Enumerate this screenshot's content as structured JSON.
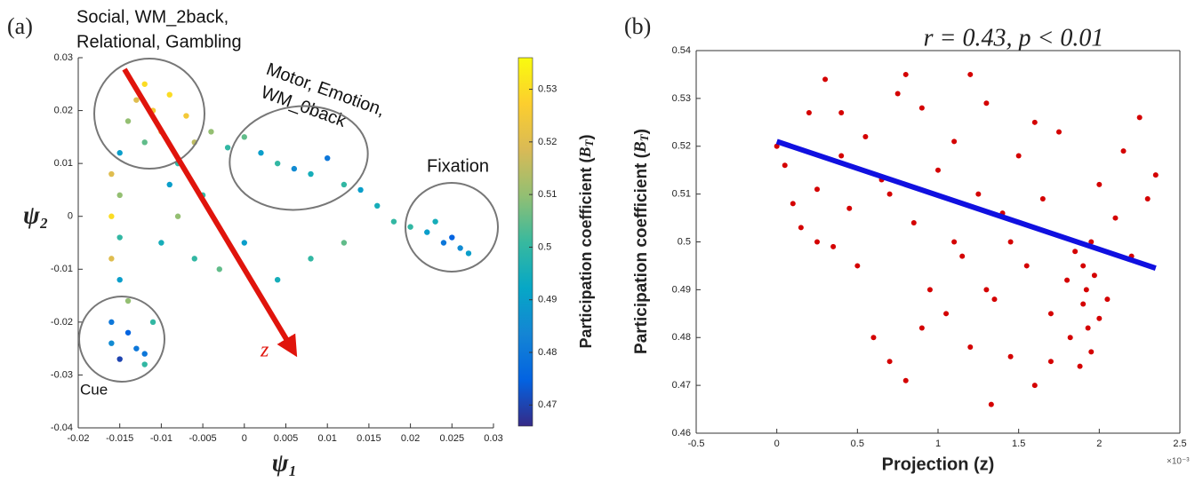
{
  "chart_data": [
    {
      "type": "scatter",
      "panel_label": "(a)",
      "xlabel": "ψ₁",
      "ylabel": "ψ₂",
      "colormap": "parula",
      "xlim": [
        -0.02,
        0.03
      ],
      "ylim": [
        -0.04,
        0.03
      ],
      "xticks": [
        -0.02,
        -0.015,
        -0.01,
        -0.005,
        0,
        0.005,
        0.01,
        0.015,
        0.02,
        0.025,
        0.03
      ],
      "yticks": [
        -0.04,
        -0.03,
        -0.02,
        -0.01,
        0,
        0.01,
        0.02,
        0.03
      ],
      "colorbar": {
        "label": [
          "Participation coefficient (",
          "B",
          "T",
          ")"
        ],
        "clim": [
          0.466,
          0.536
        ],
        "ticks": [
          0.47,
          0.48,
          0.49,
          0.5,
          0.51,
          0.52,
          0.53
        ]
      },
      "annotations": [
        [
          "Social, WM_2back,",
          "Relational, Gambling"
        ],
        [
          "Motor, Emotion,",
          "WM_0back"
        ],
        [
          "Fixation"
        ],
        [
          "Cue"
        ],
        [
          "z"
        ]
      ],
      "x": [
        -0.012,
        -0.013,
        -0.011,
        -0.009,
        -0.014,
        -0.01,
        -0.007,
        -0.012,
        -0.015,
        -0.016,
        -0.015,
        -0.016,
        -0.015,
        -0.016,
        -0.015,
        -0.014,
        -0.016,
        -0.014,
        -0.013,
        -0.015,
        -0.012,
        -0.016,
        -0.011,
        -0.012,
        -0.008,
        -0.006,
        -0.004,
        -0.002,
        0.0,
        0.002,
        0.004,
        0.006,
        0.008,
        0.01,
        0.012,
        0.014,
        0.016,
        -0.005,
        -0.008,
        -0.01,
        -0.006,
        -0.003,
        0.0,
        0.004,
        0.008,
        0.012,
        -0.009,
        0.02,
        0.022,
        0.024,
        0.026,
        0.027,
        0.023,
        0.025,
        0.018
      ],
      "values": [
        0.025,
        0.022,
        0.02,
        0.023,
        0.018,
        0.016,
        0.019,
        0.014,
        0.012,
        0.008,
        0.004,
        0.0,
        -0.004,
        -0.008,
        -0.012,
        -0.016,
        -0.02,
        -0.022,
        -0.025,
        -0.027,
        -0.028,
        -0.024,
        -0.02,
        -0.026,
        0.01,
        0.014,
        0.016,
        0.013,
        0.015,
        0.012,
        0.01,
        0.009,
        0.008,
        0.011,
        0.006,
        0.005,
        0.002,
        0.004,
        0.0,
        -0.005,
        -0.008,
        -0.01,
        -0.005,
        -0.012,
        -0.008,
        -0.005,
        0.006,
        -0.002,
        -0.003,
        -0.005,
        -0.006,
        -0.007,
        -0.001,
        -0.004,
        -0.001
      ],
      "color_values": [
        0.53,
        0.52,
        0.525,
        0.53,
        0.51,
        0.52,
        0.525,
        0.505,
        0.49,
        0.52,
        0.51,
        0.53,
        0.5,
        0.52,
        0.49,
        0.51,
        0.48,
        0.475,
        0.48,
        0.47,
        0.5,
        0.485,
        0.5,
        0.48,
        0.5,
        0.515,
        0.51,
        0.5,
        0.505,
        0.49,
        0.5,
        0.485,
        0.495,
        0.48,
        0.5,
        0.49,
        0.495,
        0.5,
        0.51,
        0.495,
        0.5,
        0.505,
        0.49,
        0.495,
        0.5,
        0.505,
        0.49,
        0.5,
        0.49,
        0.48,
        0.485,
        0.49,
        0.495,
        0.475,
        0.5
      ]
    },
    {
      "type": "scatter",
      "panel_label": "(b)",
      "title": "r = 0.43, p < 0.01",
      "xlabel": "Projection (z)",
      "x_multiplier": "×10⁻³",
      "ylabel": [
        "Participation coefficient (",
        "B",
        "T",
        ")"
      ],
      "color": "#d40000",
      "box": true,
      "xlim": [
        -0.5,
        2.5
      ],
      "ylim": [
        0.46,
        0.54
      ],
      "xticks": [
        -0.5,
        0,
        0.5,
        1,
        1.5,
        2,
        2.5
      ],
      "yticks": [
        0.46,
        0.47,
        0.48,
        0.49,
        0.5,
        0.51,
        0.52,
        0.53,
        0.54
      ],
      "fit_line": {
        "color": "#1010e0",
        "x": [
          0,
          2.35
        ],
        "y": [
          0.521,
          0.4945
        ]
      },
      "x": [
        0.0,
        0.05,
        0.1,
        0.15,
        0.2,
        0.25,
        0.3,
        0.35,
        0.4,
        0.45,
        0.5,
        0.55,
        0.6,
        0.65,
        0.7,
        0.75,
        0.8,
        0.85,
        0.9,
        0.95,
        1.0,
        1.05,
        1.1,
        1.15,
        1.2,
        1.25,
        1.3,
        1.33,
        1.35,
        1.4,
        1.45,
        1.5,
        1.55,
        1.6,
        1.65,
        1.7,
        1.75,
        1.8,
        1.82,
        1.85,
        1.88,
        1.9,
        1.9,
        1.92,
        1.93,
        1.95,
        1.95,
        1.97,
        2.0,
        2.0,
        2.05,
        2.1,
        2.15,
        2.2,
        2.25,
        2.3,
        2.35,
        1.1,
        0.7,
        1.3,
        0.4,
        0.9,
        1.6,
        1.7,
        1.2,
        0.8,
        0.25,
        1.45
      ],
      "values": [
        0.52,
        0.516,
        0.508,
        0.503,
        0.527,
        0.511,
        0.534,
        0.499,
        0.518,
        0.507,
        0.495,
        0.522,
        0.48,
        0.513,
        0.475,
        0.531,
        0.471,
        0.504,
        0.528,
        0.49,
        0.515,
        0.485,
        0.521,
        0.497,
        0.478,
        0.51,
        0.529,
        0.466,
        0.488,
        0.506,
        0.476,
        0.518,
        0.495,
        0.47,
        0.509,
        0.485,
        0.523,
        0.492,
        0.48,
        0.498,
        0.474,
        0.487,
        0.495,
        0.49,
        0.482,
        0.477,
        0.5,
        0.493,
        0.484,
        0.512,
        0.488,
        0.505,
        0.519,
        0.497,
        0.526,
        0.509,
        0.514,
        0.5,
        0.51,
        0.49,
        0.527,
        0.482,
        0.525,
        0.475,
        0.535,
        0.535,
        0.5,
        0.5
      ]
    }
  ]
}
